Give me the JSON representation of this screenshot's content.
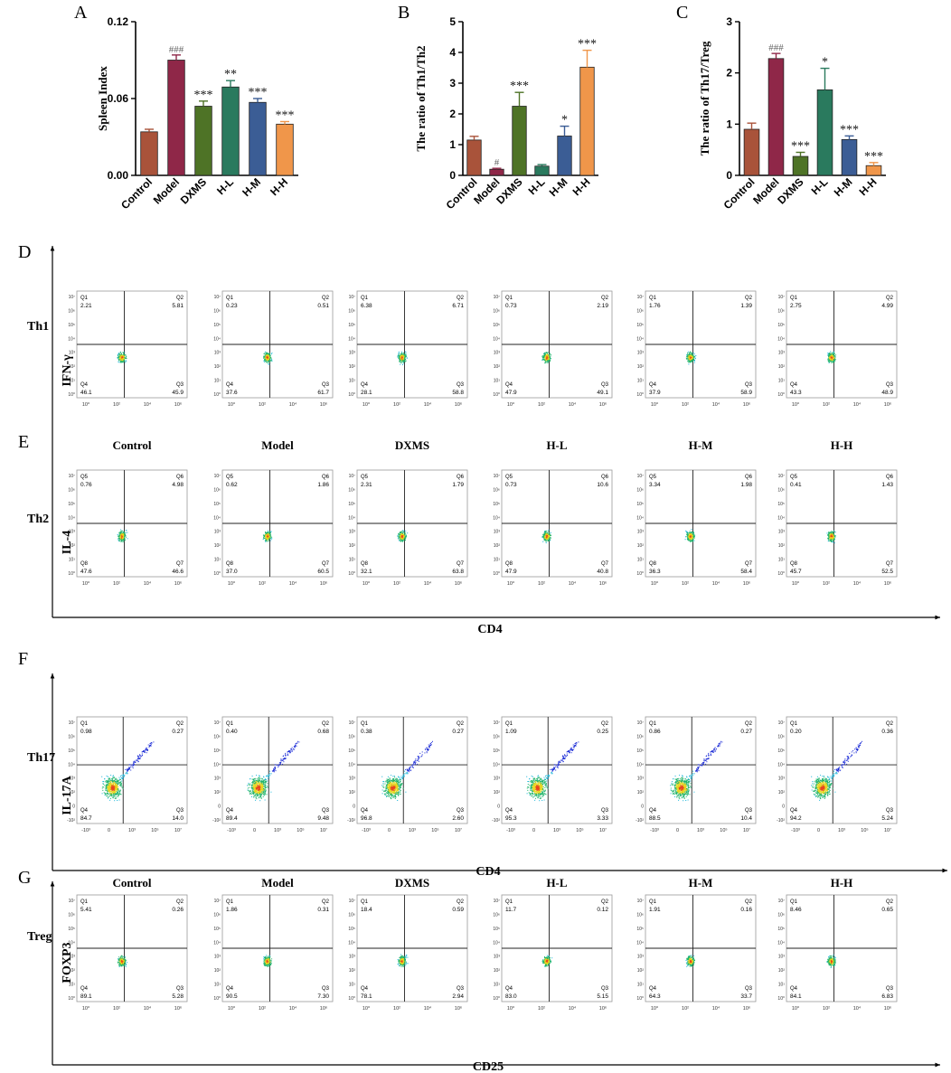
{
  "colors": {
    "control": "#a9533a",
    "model": "#8f2748",
    "dxms": "#4e7326",
    "hl": "#2a7a5e",
    "hm": "#3b5d95",
    "hh": "#f0964a",
    "density_low": "#1b2bd6",
    "density_mid": "#1fb36a",
    "density_high": "#e8451e"
  },
  "chart_data": [
    {
      "type": "bar",
      "panel": "A",
      "categories": [
        "Control",
        "Model",
        "DXMS",
        "H-L",
        "H-M",
        "H-H"
      ],
      "values": [
        0.034,
        0.09,
        0.054,
        0.069,
        0.057,
        0.04
      ],
      "errors": [
        0.002,
        0.004,
        0.004,
        0.005,
        0.003,
        0.002
      ],
      "annotations": [
        "",
        "###",
        "***",
        "**",
        "***",
        "***"
      ],
      "ylabel": "Spleen Index",
      "ylim": [
        0,
        0.12
      ],
      "yticks": [
        "0.00",
        "0.06",
        "0.12"
      ],
      "ytick_values": [
        0,
        0.06,
        0.12
      ]
    },
    {
      "type": "bar",
      "panel": "B",
      "categories": [
        "Control",
        "Model",
        "DXMS",
        "H-L",
        "H-M",
        "H-H"
      ],
      "values": [
        1.15,
        0.2,
        2.25,
        0.3,
        1.28,
        3.52
      ],
      "errors": [
        0.12,
        0.03,
        0.45,
        0.05,
        0.32,
        0.55
      ],
      "annotations": [
        "",
        "#",
        "***",
        "",
        "*",
        "***"
      ],
      "ylabel": "The ratio of Th1/Th2",
      "ylim": [
        0,
        5
      ],
      "yticks": [
        "0",
        "1",
        "2",
        "3",
        "4",
        "5"
      ],
      "ytick_values": [
        0,
        1,
        2,
        3,
        4,
        5
      ]
    },
    {
      "type": "bar",
      "panel": "C",
      "categories": [
        "Control",
        "Model",
        "DXMS",
        "H-L",
        "H-M",
        "H-H"
      ],
      "values": [
        0.9,
        2.28,
        0.37,
        1.67,
        0.7,
        0.19
      ],
      "errors": [
        0.12,
        0.1,
        0.08,
        0.42,
        0.07,
        0.06
      ],
      "annotations": [
        "",
        "###",
        "***",
        "*",
        "***",
        "***"
      ],
      "ylabel": "The ratio of Th17/Treg",
      "ylim": [
        0,
        3
      ],
      "yticks": [
        "0",
        "1",
        "2",
        "3"
      ],
      "ytick_values": [
        0,
        1,
        2,
        3
      ]
    }
  ],
  "flow": {
    "groups": [
      "Control",
      "Model",
      "DXMS",
      "H-L",
      "H-M",
      "H-H"
    ],
    "tick_labels_a": [
      "10⁰",
      "10²",
      "10⁴",
      "10⁶"
    ],
    "tick_labels_b": [
      "-10³",
      "0",
      "10³",
      "10⁵",
      "10⁷"
    ],
    "ytick_labels_a": [
      "10⁷",
      "10⁶",
      "10⁵",
      "10⁴",
      "10³",
      "10²",
      "10¹",
      "10⁰"
    ],
    "ytick_labels_b": [
      "10⁷",
      "10⁶",
      "10⁵",
      "10⁴",
      "10³",
      "10²",
      "0",
      "-10²"
    ],
    "rows": [
      {
        "panel": "D",
        "row_label": "Th1",
        "ylabel": "IFN-γ",
        "quadrants": [
          "Q1",
          "Q2",
          "Q3",
          "Q4"
        ],
        "values": [
          [
            "2.21",
            "5.81",
            "45.9",
            "46.1"
          ],
          [
            "0.23",
            "0.51",
            "61.7",
            "37.6"
          ],
          [
            "6.38",
            "6.71",
            "58.8",
            "28.1"
          ],
          [
            "0.73",
            "2.19",
            "49.1",
            "47.9"
          ],
          [
            "1.76",
            "1.39",
            "58.9",
            "37.9"
          ],
          [
            "2.75",
            "4.99",
            "48.9",
            "43.3"
          ]
        ]
      },
      {
        "panel": "E",
        "row_label": "Th2",
        "ylabel": "IL-4",
        "quadrants": [
          "Q5",
          "Q6",
          "Q7",
          "Q8"
        ],
        "values": [
          [
            "0.76",
            "4.98",
            "46.6",
            "47.6"
          ],
          [
            "0.62",
            "1.86",
            "60.5",
            "37.0"
          ],
          [
            "2.31",
            "1.79",
            "63.8",
            "32.1"
          ],
          [
            "0.73",
            "10.6",
            "40.8",
            "47.9"
          ],
          [
            "3.34",
            "1.98",
            "58.4",
            "36.3"
          ],
          [
            "0.41",
            "1.43",
            "52.5",
            "45.7"
          ]
        ]
      },
      {
        "panel": "F",
        "row_label": "Th17",
        "ylabel": "IL-17A",
        "quadrants": [
          "Q1",
          "Q2",
          "Q3",
          "Q4"
        ],
        "values": [
          [
            "0.98",
            "0.27",
            "14.0",
            "84.7"
          ],
          [
            "0.40",
            "0.68",
            "9.48",
            "89.4"
          ],
          [
            "0.38",
            "0.27",
            "2.60",
            "96.8"
          ],
          [
            "1.09",
            "0.25",
            "3.33",
            "95.3"
          ],
          [
            "0.86",
            "0.27",
            "10.4",
            "88.5"
          ],
          [
            "0.20",
            "0.36",
            "5.24",
            "94.2"
          ]
        ]
      },
      {
        "panel": "G",
        "row_label": "Treg",
        "ylabel": "FOXP3",
        "quadrants": [
          "Q1",
          "Q2",
          "Q3",
          "Q4"
        ],
        "values": [
          [
            "5.41",
            "0.26",
            "5.28",
            "89.1"
          ],
          [
            "1.86",
            "0.31",
            "7.30",
            "90.5"
          ],
          [
            "18.4",
            "0.59",
            "2.94",
            "78.1"
          ],
          [
            "11.7",
            "0.12",
            "5.15",
            "83.0"
          ],
          [
            "1.91",
            "0.16",
            "33.7",
            "64.3"
          ],
          [
            "8.46",
            "0.65",
            "6.83",
            "84.1"
          ]
        ]
      }
    ],
    "xlabel_de": "CD4",
    "xlabel_f": "CD4",
    "xlabel_g": "CD25"
  }
}
